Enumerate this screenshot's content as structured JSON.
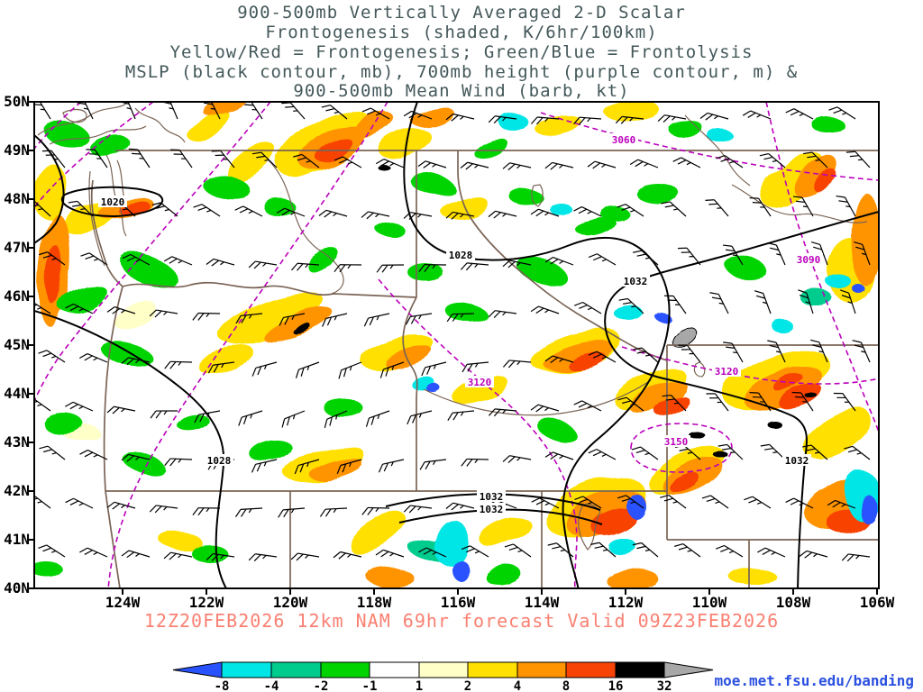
{
  "title": {
    "lines": [
      "900-500mb Vertically Averaged 2-D Scalar",
      "Frontogenesis (shaded, K/6hr/100km)",
      "Yellow/Red = Frontogenesis;  Green/Blue = Frontolysis",
      "MSLP (black contour, mb), 700mb height (purple contour, m) &",
      "900-500mb Mean Wind (barb, kt)"
    ]
  },
  "map": {
    "lat_labels": [
      "50N",
      "49N",
      "48N",
      "47N",
      "46N",
      "45N",
      "44N",
      "43N",
      "42N",
      "41N",
      "40N"
    ],
    "lon_labels": [
      "124W",
      "122W",
      "120W",
      "118W",
      "116W",
      "114W",
      "112W",
      "110W",
      "108W",
      "106W"
    ],
    "mslp_labels": [
      "1020",
      "1028",
      "1032",
      "1028",
      "1032",
      "1032",
      "1032"
    ],
    "height_labels": [
      "3060",
      "3090",
      "3120",
      "3120",
      "3150"
    ]
  },
  "caption": "12Z20FEB2026 12km NAM 69hr forecast Valid 09Z23FEB2026",
  "credit": "moe.met.fsu.edu/banding",
  "colorbar": {
    "ticks": [
      "-8",
      "-4",
      "-2",
      "-1",
      "1",
      "2",
      "4",
      "8",
      "16",
      "32"
    ],
    "segment_colors": [
      "#00e6e6",
      "#00cc8e",
      "#00d400",
      "#ffffff",
      "#ffffc8",
      "#ffe000",
      "#ff9400",
      "#f84306",
      "#000000"
    ],
    "below_color": "#2952ff",
    "above_color": "#a8a8a8"
  },
  "colors": {
    "title": "#44585a",
    "caption": "#fa8072",
    "credit": "#2b50e0",
    "mslp_contour": "#000000",
    "height_contour": "#bb00bb",
    "state_border": "#7a6455"
  }
}
